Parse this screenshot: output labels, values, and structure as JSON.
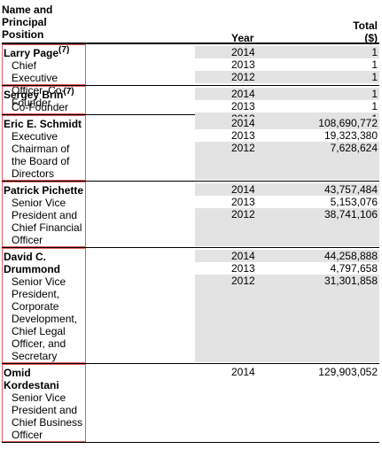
{
  "header": {
    "name_line1": "Name and",
    "name_line2": "Principal",
    "name_line3": "Position",
    "year": "Year",
    "total_line1": "Total",
    "total_line2": "($)"
  },
  "rows": [
    {
      "name": "Larry Page",
      "footnote": "(7)",
      "title_lines": [
        "Chief Executive",
        "Officer, Co-Founder"
      ],
      "entries": [
        {
          "year": "2014",
          "total": "1"
        },
        {
          "year": "2013",
          "total": "1"
        },
        {
          "year": "2012",
          "total": "1"
        }
      ]
    },
    {
      "name": "Sergey Brin",
      "footnote": "(7)",
      "title_lines": [
        "Co-Founder"
      ],
      "entries": [
        {
          "year": "2014",
          "total": "1"
        },
        {
          "year": "2013",
          "total": "1"
        },
        {
          "year": "2012",
          "total": "1"
        }
      ]
    },
    {
      "name": "Eric E. Schmidt",
      "footnote": "",
      "title_lines": [
        "Executive",
        "Chairman of",
        "the Board of",
        "Directors"
      ],
      "entries": [
        {
          "year": "2014",
          "total": "108,690,772"
        },
        {
          "year": "2013",
          "total": "19,323,380"
        },
        {
          "year": "2012",
          "total": "7,628,624"
        }
      ]
    },
    {
      "name": "Patrick Pichette",
      "footnote": "",
      "title_lines": [
        "Senior Vice",
        "President and",
        "Chief Financial",
        "Officer"
      ],
      "entries": [
        {
          "year": "2014",
          "total": "43,757,484"
        },
        {
          "year": "2013",
          "total": "5,153,076"
        },
        {
          "year": "2012",
          "total": "38,741,106"
        }
      ]
    },
    {
      "name_lines": [
        "David C.",
        "Drummond"
      ],
      "footnote": "",
      "title_lines": [
        "Senior Vice",
        "President,",
        "Corporate",
        "Development,",
        "Chief Legal",
        "Officer, and",
        "Secretary"
      ],
      "entries": [
        {
          "year": "2014",
          "total": "44,258,888"
        },
        {
          "year": "2013",
          "total": "4,797,658"
        },
        {
          "year": "2012",
          "total": "31,301,858"
        }
      ]
    },
    {
      "name_lines": [
        "Omid",
        "Kordestani"
      ],
      "footnote": "",
      "title_lines": [
        "Senior Vice",
        "President and",
        "Chief Business",
        "Officer"
      ],
      "entries": [
        {
          "year": "2014",
          "total": "129,903,052"
        }
      ]
    }
  ]
}
